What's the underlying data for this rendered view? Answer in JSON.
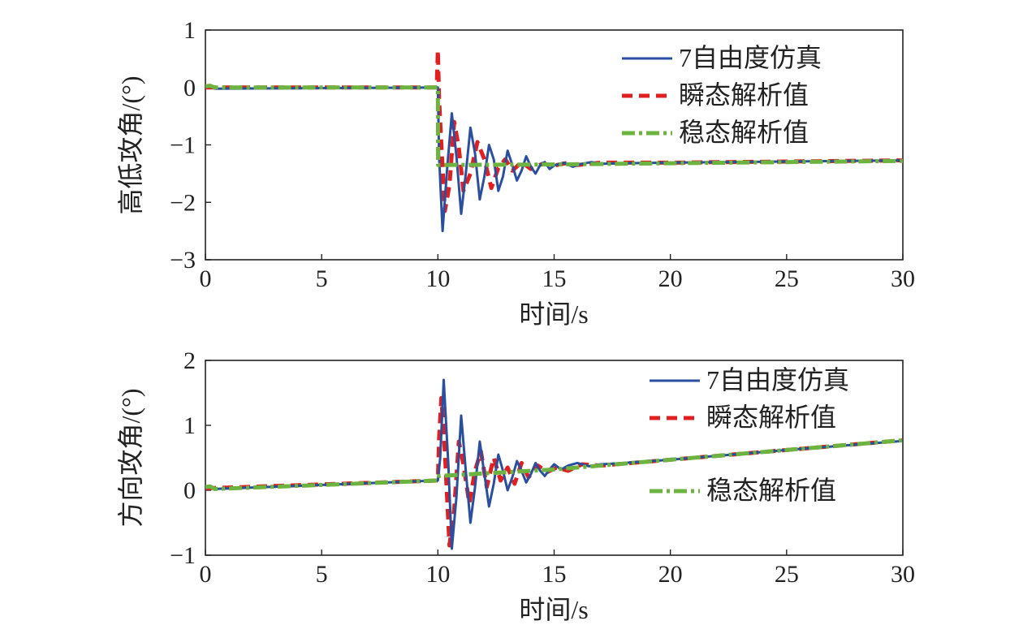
{
  "chart_data": [
    {
      "type": "line",
      "xlabel": "时间/s",
      "ylabel": "高低攻角/(°)",
      "xlim": [
        0,
        30
      ],
      "ylim": [
        -3,
        1
      ],
      "xticks": [
        0,
        5,
        10,
        15,
        20,
        25,
        30
      ],
      "yticks": [
        1,
        0,
        -1,
        -2,
        -3
      ],
      "ytick_labels": [
        "1",
        "0",
        "−1",
        "−2",
        "−3"
      ],
      "legend_position": "top-right",
      "series": [
        {
          "name": "7自由度仿真",
          "color": "#2a4fa0",
          "style": "solid",
          "x": [
            0,
            0.2,
            0.4,
            10.0,
            10.05,
            10.2,
            10.4,
            10.6,
            10.8,
            11.0,
            11.2,
            11.4,
            11.6,
            11.8,
            12.0,
            12.2,
            12.4,
            12.6,
            12.8,
            13.0,
            13.2,
            13.4,
            13.6,
            13.8,
            14.0,
            14.2,
            14.4,
            14.6,
            14.8,
            15.0,
            15.4,
            15.8,
            16.2,
            16.6,
            17.0,
            18.0,
            20.0,
            25.0,
            30.0
          ],
          "y": [
            0,
            0.03,
            -0.02,
            0,
            -1.2,
            -2.5,
            -1.4,
            -0.45,
            -1.2,
            -2.2,
            -1.5,
            -0.7,
            -1.15,
            -1.95,
            -1.55,
            -1.0,
            -1.25,
            -1.8,
            -1.55,
            -1.1,
            -1.35,
            -1.62,
            -1.45,
            -1.2,
            -1.38,
            -1.5,
            -1.35,
            -1.3,
            -1.42,
            -1.36,
            -1.31,
            -1.38,
            -1.33,
            -1.3,
            -1.33,
            -1.32,
            -1.31,
            -1.29,
            -1.27
          ]
        },
        {
          "name": "瞬态解析值",
          "color": "#e02020",
          "style": "dashed",
          "x": [
            0,
            9.95,
            10.0,
            10.05,
            10.15,
            10.3,
            10.5,
            10.7,
            10.9,
            11.1,
            11.4,
            11.7,
            12.0,
            12.3,
            12.6,
            12.9,
            13.2,
            13.6,
            14.0,
            14.5,
            15.0,
            15.5,
            16.0,
            17.0,
            20.0,
            25.0,
            30.0
          ],
          "y": [
            0,
            0,
            0.65,
            -0.2,
            -1.0,
            -2.15,
            -1.7,
            -0.6,
            -1.05,
            -1.8,
            -1.5,
            -0.95,
            -1.25,
            -1.75,
            -1.4,
            -1.25,
            -1.45,
            -1.3,
            -1.42,
            -1.33,
            -1.36,
            -1.32,
            -1.35,
            -1.31,
            -1.31,
            -1.29,
            -1.27
          ]
        },
        {
          "name": "稳态解析值",
          "color": "#6db33f",
          "style": "dashdot",
          "x": [
            0,
            0.2,
            0.4,
            10.0,
            10.01,
            15.0,
            20.0,
            25.0,
            30.0
          ],
          "y": [
            0.02,
            0.03,
            0.0,
            0,
            -1.35,
            -1.34,
            -1.32,
            -1.3,
            -1.28
          ]
        }
      ]
    },
    {
      "type": "line",
      "xlabel": "时间/s",
      "ylabel": "方向攻角/(°)",
      "xlim": [
        0,
        30
      ],
      "ylim": [
        -1,
        2
      ],
      "xticks": [
        0,
        5,
        10,
        15,
        20,
        25,
        30
      ],
      "yticks": [
        2,
        1,
        0,
        -1
      ],
      "ytick_labels": [
        "2",
        "1",
        "0",
        "−1"
      ],
      "legend_position": "top-right",
      "series": [
        {
          "name": "7自由度仿真",
          "color": "#2a4fa0",
          "style": "solid",
          "x": [
            0,
            0.2,
            0.4,
            10.0,
            10.1,
            10.25,
            10.45,
            10.6,
            10.8,
            11.0,
            11.2,
            11.4,
            11.6,
            11.8,
            12.0,
            12.2,
            12.4,
            12.6,
            12.8,
            13.0,
            13.2,
            13.4,
            13.6,
            13.8,
            14.0,
            14.2,
            14.4,
            14.6,
            14.8,
            15.0,
            15.3,
            15.6,
            16.0,
            16.5,
            17.0,
            18.0,
            20.0,
            25.0,
            30.0
          ],
          "y": [
            0.03,
            0.05,
            0.02,
            0.15,
            0.5,
            1.7,
            0.4,
            -0.9,
            -0.1,
            1.15,
            0.3,
            -0.5,
            0.05,
            0.75,
            0.25,
            -0.25,
            0.1,
            0.55,
            0.3,
            0.0,
            0.2,
            0.45,
            0.3,
            0.12,
            0.25,
            0.42,
            0.3,
            0.22,
            0.32,
            0.4,
            0.32,
            0.38,
            0.42,
            0.37,
            0.4,
            0.42,
            0.47,
            0.62,
            0.76
          ]
        },
        {
          "name": "瞬态解析值",
          "color": "#e02020",
          "style": "dashed",
          "x": [
            0,
            10.0,
            10.05,
            10.15,
            10.3,
            10.5,
            10.7,
            10.9,
            11.1,
            11.35,
            11.6,
            11.85,
            12.1,
            12.4,
            12.7,
            13.0,
            13.3,
            13.6,
            13.9,
            14.3,
            14.7,
            15.1,
            15.6,
            16.2,
            17.0,
            20.0,
            25.0,
            30.0
          ],
          "y": [
            0.03,
            0.15,
            0.8,
            1.42,
            0.6,
            -0.85,
            -0.3,
            0.75,
            0.4,
            -0.2,
            0.3,
            0.6,
            0.05,
            0.5,
            0.15,
            0.35,
            0.1,
            0.42,
            0.2,
            0.38,
            0.28,
            0.35,
            0.3,
            0.4,
            0.38,
            0.47,
            0.62,
            0.77
          ]
        },
        {
          "name": "稳态解析值",
          "color": "#6db33f",
          "style": "dashdot",
          "x": [
            0,
            0.2,
            0.4,
            10.0,
            10.05,
            15.0,
            20.0,
            25.0,
            30.0
          ],
          "y": [
            0.05,
            0.06,
            0.02,
            0.15,
            0.22,
            0.32,
            0.47,
            0.62,
            0.77
          ]
        }
      ]
    }
  ]
}
